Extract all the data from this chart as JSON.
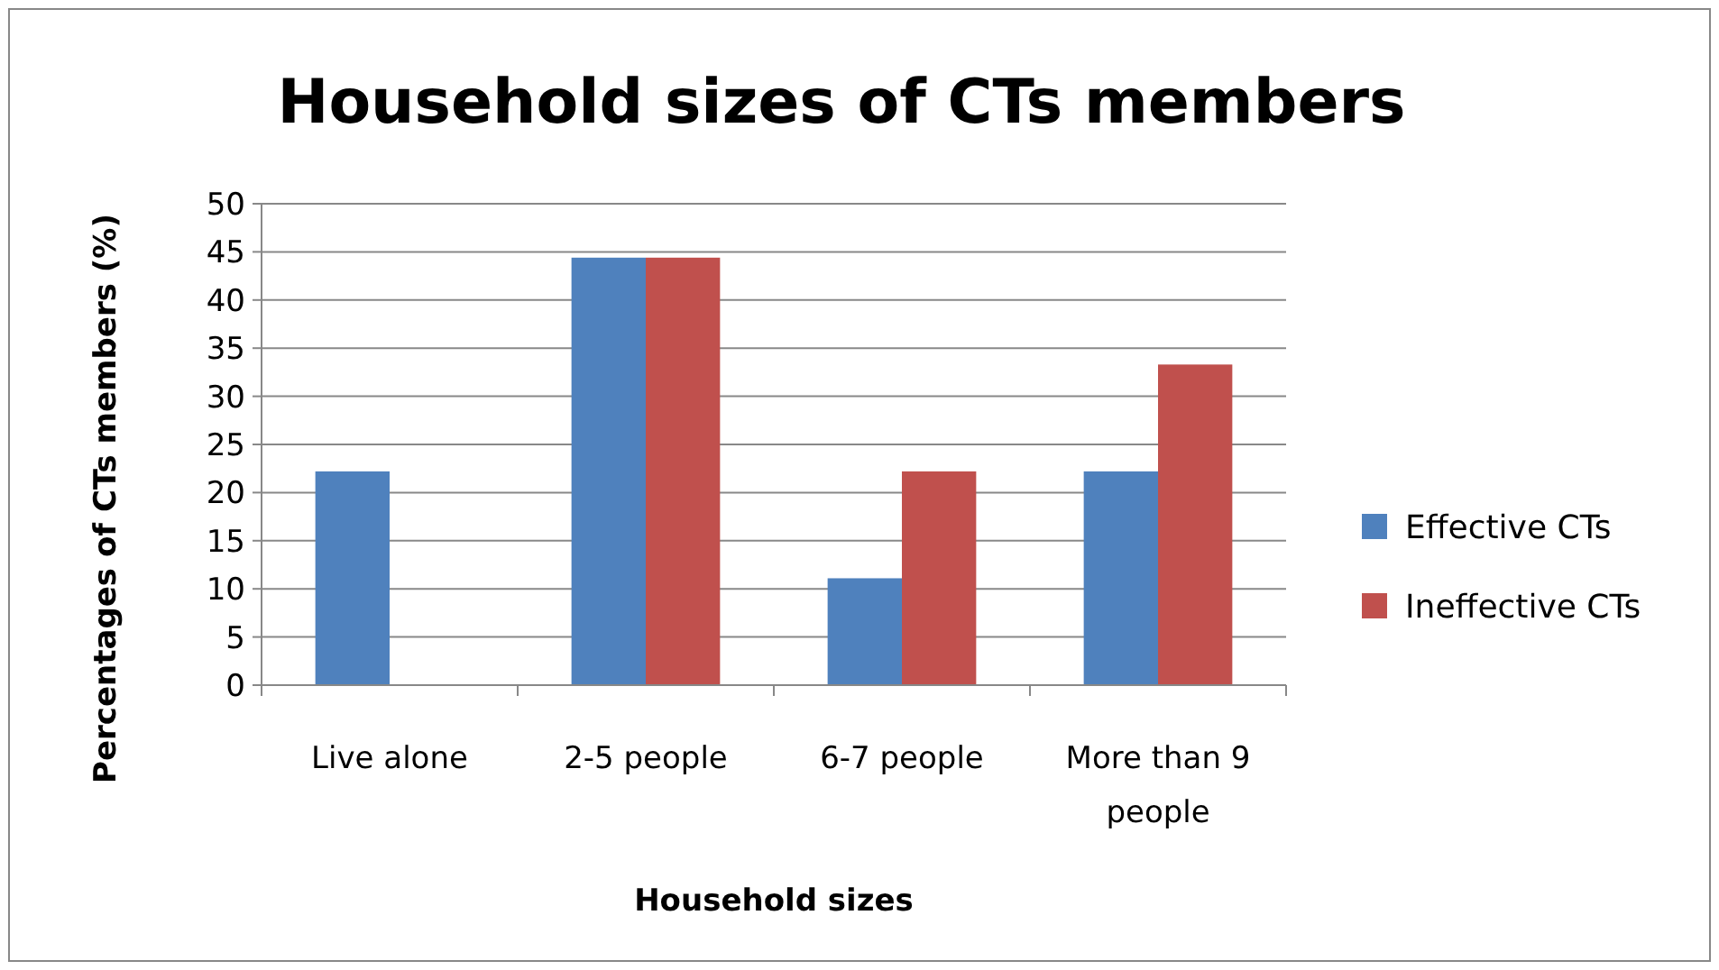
{
  "chart_data": {
    "type": "bar",
    "title": "Household sizes of CTs members",
    "xlabel": "Household sizes",
    "ylabel": "Percentages of CTs members (%)",
    "categories": [
      "Live alone",
      "2-5 people",
      "6-7 people",
      "More than 9 people"
    ],
    "series": [
      {
        "name": "Effective CTs",
        "color": "#4f81bd",
        "values": [
          22.2,
          44.4,
          11.1,
          22.2
        ]
      },
      {
        "name": "Ineffective CTs",
        "color": "#c0504d",
        "values": [
          0,
          44.4,
          22.2,
          33.3
        ]
      }
    ],
    "ylim": [
      0,
      50
    ],
    "yticks": [
      0,
      5,
      10,
      15,
      20,
      25,
      30,
      35,
      40,
      45,
      50
    ],
    "grid": "y",
    "legend": "right"
  }
}
